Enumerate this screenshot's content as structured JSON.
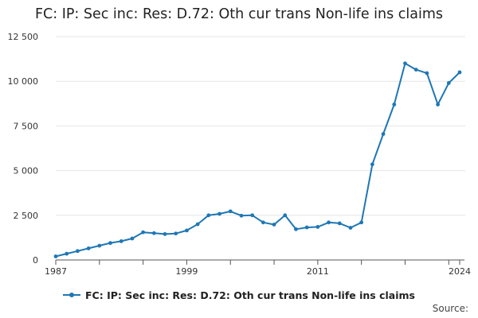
{
  "chart_data": {
    "type": "line",
    "title": "FC: IP: Sec inc: Res: D.72: Oth cur trans Non-life ins claims",
    "xlabel": "",
    "ylabel": "",
    "x": [
      1987,
      1988,
      1989,
      1990,
      1991,
      1992,
      1993,
      1994,
      1995,
      1996,
      1997,
      1998,
      1999,
      2000,
      2001,
      2002,
      2003,
      2004,
      2005,
      2006,
      2007,
      2008,
      2009,
      2010,
      2011,
      2012,
      2013,
      2014,
      2015,
      2016,
      2017,
      2018,
      2019,
      2020,
      2021,
      2022,
      2023,
      2024
    ],
    "series": [
      {
        "name": "FC: IP: Sec inc: Res: D.72: Oth cur trans Non-life ins claims",
        "values": [
          200,
          350,
          500,
          650,
          800,
          950,
          1050,
          1200,
          1550,
          1500,
          1450,
          1480,
          1650,
          2000,
          2500,
          2580,
          2720,
          2480,
          2500,
          2100,
          1980,
          2500,
          1720,
          1820,
          1850,
          2100,
          2050,
          1800,
          2100,
          5350,
          7050,
          8700,
          11000,
          10650,
          10450,
          8700,
          9900,
          10500
        ]
      }
    ],
    "x_tick_labels": [
      "1987",
      "1999",
      "2011",
      "2024"
    ],
    "x_ticks": [
      1987,
      1999,
      2011,
      2024
    ],
    "y_tick_labels": [
      "0",
      "2 500",
      "5 000",
      "7 500",
      "10 000",
      "12 500"
    ],
    "y_ticks": [
      0,
      2500,
      5000,
      7500,
      10000,
      12500
    ],
    "xlim": [
      1987,
      2024
    ],
    "ylim": [
      0,
      12500
    ],
    "grid": true,
    "legend_position": "bottom",
    "colors": {
      "series": "#1f77b4",
      "grid": "#e6e6e6",
      "axis": "#555555"
    }
  },
  "source_label": "Source:"
}
